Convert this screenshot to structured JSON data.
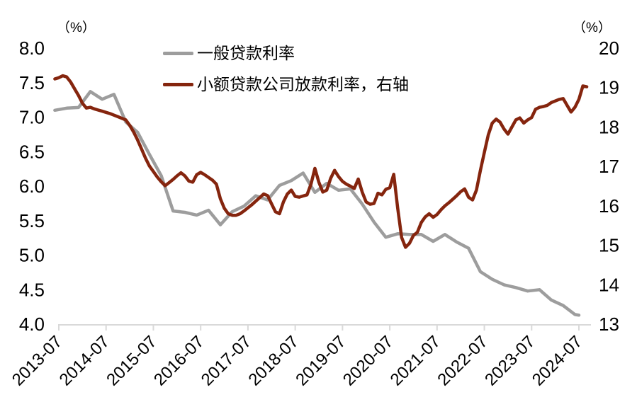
{
  "chart_data": {
    "type": "line",
    "title": "",
    "axis_color": "#D9D9D9",
    "text_color": "#000000",
    "y_left": {
      "unit_label": "（%）",
      "min": 4.0,
      "max": 8.0,
      "tick_values": [
        8.0,
        7.5,
        7.0,
        6.5,
        6.0,
        5.5,
        5.0,
        4.5,
        4.0
      ],
      "tick_labels": [
        "8.0",
        "7.5",
        "7.0",
        "6.5",
        "6.0",
        "5.5",
        "5.0",
        "4.5",
        "4.0"
      ]
    },
    "y_right": {
      "unit_label": "（%）",
      "min": 13,
      "max": 20,
      "tick_values": [
        20,
        19,
        18,
        17,
        16,
        15,
        14,
        13
      ],
      "tick_labels": [
        "20",
        "19",
        "18",
        "17",
        "16",
        "15",
        "14",
        "13"
      ]
    },
    "x_ticks": [
      "2013-07",
      "2014-07",
      "2015-07",
      "2016-07",
      "2017-07",
      "2018-07",
      "2019-07",
      "2020-07",
      "2021-07",
      "2022-07",
      "2023-07",
      "2024-07"
    ],
    "legend": [
      {
        "label": "一般贷款利率",
        "color": "#9D9D9D"
      },
      {
        "label": "小额贷款公司放款利率，右轴",
        "color": "#85250E"
      }
    ],
    "series": [
      {
        "name": "一般贷款利率",
        "axis": "left",
        "color": "#9D9D9D",
        "points": [
          [
            "2013-06",
            7.1
          ],
          [
            "2013-09",
            7.13
          ],
          [
            "2013-12",
            7.14
          ],
          [
            "2014-03",
            7.37
          ],
          [
            "2014-06",
            7.26
          ],
          [
            "2014-09",
            7.33
          ],
          [
            "2014-12",
            6.93
          ],
          [
            "2015-03",
            6.78
          ],
          [
            "2015-06",
            6.46
          ],
          [
            "2015-09",
            6.15
          ],
          [
            "2015-12",
            5.64
          ],
          [
            "2016-03",
            5.62
          ],
          [
            "2016-06",
            5.58
          ],
          [
            "2016-09",
            5.65
          ],
          [
            "2016-12",
            5.44
          ],
          [
            "2017-03",
            5.63
          ],
          [
            "2017-06",
            5.71
          ],
          [
            "2017-09",
            5.86
          ],
          [
            "2017-12",
            5.8
          ],
          [
            "2018-03",
            6.01
          ],
          [
            "2018-06",
            6.08
          ],
          [
            "2018-09",
            6.19
          ],
          [
            "2018-12",
            5.91
          ],
          [
            "2019-03",
            6.04
          ],
          [
            "2019-06",
            5.94
          ],
          [
            "2019-09",
            5.96
          ],
          [
            "2019-12",
            5.74
          ],
          [
            "2020-03",
            5.48
          ],
          [
            "2020-06",
            5.26
          ],
          [
            "2020-09",
            5.31
          ],
          [
            "2020-12",
            5.3
          ],
          [
            "2021-03",
            5.3
          ],
          [
            "2021-06",
            5.2
          ],
          [
            "2021-09",
            5.3
          ],
          [
            "2021-12",
            5.19
          ],
          [
            "2022-03",
            5.1
          ],
          [
            "2022-06",
            4.76
          ],
          [
            "2022-09",
            4.65
          ],
          [
            "2022-12",
            4.57
          ],
          [
            "2023-03",
            4.53
          ],
          [
            "2023-06",
            4.48
          ],
          [
            "2023-09",
            4.5
          ],
          [
            "2023-12",
            4.35
          ],
          [
            "2024-03",
            4.27
          ],
          [
            "2024-06",
            4.14
          ],
          [
            "2024-07",
            4.13
          ]
        ]
      },
      {
        "name": "小额贷款公司放款利率，右轴",
        "axis": "right",
        "color": "#85250E",
        "points": [
          [
            "2013-06",
            19.22
          ],
          [
            "2013-07",
            19.25
          ],
          [
            "2013-08",
            19.3
          ],
          [
            "2013-09",
            19.27
          ],
          [
            "2013-10",
            19.14
          ],
          [
            "2013-11",
            18.97
          ],
          [
            "2013-12",
            18.8
          ],
          [
            "2014-01",
            18.6
          ],
          [
            "2014-02",
            18.48
          ],
          [
            "2014-03",
            18.5
          ],
          [
            "2014-04",
            18.46
          ],
          [
            "2014-05",
            18.43
          ],
          [
            "2014-06",
            18.4
          ],
          [
            "2014-07",
            18.37
          ],
          [
            "2014-08",
            18.34
          ],
          [
            "2014-09",
            18.3
          ],
          [
            "2014-10",
            18.26
          ],
          [
            "2014-11",
            18.22
          ],
          [
            "2014-12",
            18.18
          ],
          [
            "2015-01",
            18.04
          ],
          [
            "2015-02",
            17.87
          ],
          [
            "2015-03",
            17.67
          ],
          [
            "2015-04",
            17.44
          ],
          [
            "2015-05",
            17.21
          ],
          [
            "2015-06",
            17.01
          ],
          [
            "2015-07",
            16.87
          ],
          [
            "2015-08",
            16.73
          ],
          [
            "2015-09",
            16.61
          ],
          [
            "2015-10",
            16.51
          ],
          [
            "2015-11",
            16.59
          ],
          [
            "2015-12",
            16.67
          ],
          [
            "2016-01",
            16.76
          ],
          [
            "2016-02",
            16.84
          ],
          [
            "2016-03",
            16.76
          ],
          [
            "2016-04",
            16.63
          ],
          [
            "2016-05",
            16.6
          ],
          [
            "2016-06",
            16.79
          ],
          [
            "2016-07",
            16.85
          ],
          [
            "2016-08",
            16.79
          ],
          [
            "2016-09",
            16.72
          ],
          [
            "2016-10",
            16.65
          ],
          [
            "2016-11",
            16.55
          ],
          [
            "2016-12",
            16.18
          ],
          [
            "2017-01",
            15.94
          ],
          [
            "2017-02",
            15.8
          ],
          [
            "2017-03",
            15.76
          ],
          [
            "2017-04",
            15.76
          ],
          [
            "2017-05",
            15.8
          ],
          [
            "2017-06",
            15.87
          ],
          [
            "2017-07",
            15.95
          ],
          [
            "2017-08",
            16.03
          ],
          [
            "2017-09",
            16.12
          ],
          [
            "2017-10",
            16.21
          ],
          [
            "2017-11",
            16.3
          ],
          [
            "2017-12",
            16.26
          ],
          [
            "2018-01",
            16.05
          ],
          [
            "2018-02",
            15.85
          ],
          [
            "2018-03",
            15.8
          ],
          [
            "2018-04",
            16.1
          ],
          [
            "2018-05",
            16.3
          ],
          [
            "2018-06",
            16.4
          ],
          [
            "2018-07",
            16.24
          ],
          [
            "2018-08",
            16.22
          ],
          [
            "2018-09",
            16.25
          ],
          [
            "2018-10",
            16.28
          ],
          [
            "2018-11",
            16.55
          ],
          [
            "2018-12",
            16.95
          ],
          [
            "2019-01",
            16.6
          ],
          [
            "2019-02",
            16.35
          ],
          [
            "2019-03",
            16.4
          ],
          [
            "2019-04",
            16.7
          ],
          [
            "2019-05",
            16.9
          ],
          [
            "2019-06",
            16.74
          ],
          [
            "2019-07",
            16.62
          ],
          [
            "2019-08",
            16.55
          ],
          [
            "2019-09",
            16.5
          ],
          [
            "2019-10",
            16.44
          ],
          [
            "2019-11",
            16.68
          ],
          [
            "2019-12",
            16.35
          ],
          [
            "2020-01",
            16.1
          ],
          [
            "2020-02",
            16.04
          ],
          [
            "2020-03",
            16.06
          ],
          [
            "2020-04",
            16.32
          ],
          [
            "2020-05",
            16.28
          ],
          [
            "2020-06",
            16.42
          ],
          [
            "2020-07",
            16.46
          ],
          [
            "2020-08",
            16.8
          ],
          [
            "2020-09",
            15.95
          ],
          [
            "2020-10",
            15.2
          ],
          [
            "2020-11",
            14.95
          ],
          [
            "2020-12",
            15.05
          ],
          [
            "2021-01",
            15.25
          ],
          [
            "2021-02",
            15.33
          ],
          [
            "2021-03",
            15.58
          ],
          [
            "2021-04",
            15.72
          ],
          [
            "2021-05",
            15.8
          ],
          [
            "2021-06",
            15.71
          ],
          [
            "2021-07",
            15.78
          ],
          [
            "2021-08",
            15.9
          ],
          [
            "2021-09",
            16.0
          ],
          [
            "2021-10",
            16.08
          ],
          [
            "2021-11",
            16.17
          ],
          [
            "2021-12",
            16.26
          ],
          [
            "2022-01",
            16.36
          ],
          [
            "2022-02",
            16.43
          ],
          [
            "2022-03",
            16.22
          ],
          [
            "2022-04",
            16.15
          ],
          [
            "2022-05",
            16.4
          ],
          [
            "2022-06",
            16.9
          ],
          [
            "2022-07",
            17.35
          ],
          [
            "2022-08",
            17.8
          ],
          [
            "2022-09",
            18.1
          ],
          [
            "2022-10",
            18.2
          ],
          [
            "2022-11",
            18.12
          ],
          [
            "2022-12",
            17.95
          ],
          [
            "2023-01",
            17.82
          ],
          [
            "2023-02",
            18.0
          ],
          [
            "2023-03",
            18.18
          ],
          [
            "2023-04",
            18.23
          ],
          [
            "2023-05",
            18.1
          ],
          [
            "2023-06",
            18.18
          ],
          [
            "2023-07",
            18.24
          ],
          [
            "2023-08",
            18.45
          ],
          [
            "2023-09",
            18.5
          ],
          [
            "2023-10",
            18.52
          ],
          [
            "2023-11",
            18.55
          ],
          [
            "2023-12",
            18.62
          ],
          [
            "2024-01",
            18.66
          ],
          [
            "2024-02",
            18.7
          ],
          [
            "2024-03",
            18.72
          ],
          [
            "2024-04",
            18.55
          ],
          [
            "2024-05",
            18.38
          ],
          [
            "2024-06",
            18.5
          ],
          [
            "2024-07",
            18.7
          ],
          [
            "2024-08",
            19.04
          ],
          [
            "2024-09",
            19.02
          ]
        ]
      }
    ]
  }
}
